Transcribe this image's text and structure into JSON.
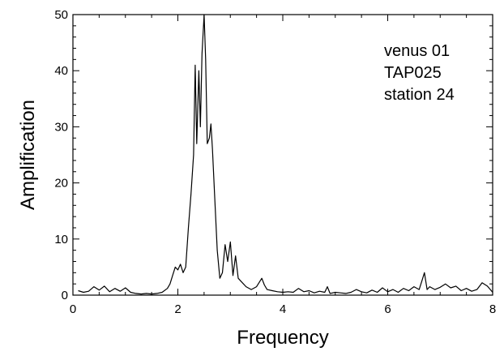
{
  "chart_data": {
    "type": "line",
    "title": "",
    "xlabel": "Frequency",
    "ylabel": "Amplification",
    "xlim": [
      0,
      8
    ],
    "ylim": [
      0,
      50
    ],
    "x_ticks": [
      0,
      2,
      4,
      6,
      8
    ],
    "y_ticks": [
      0,
      10,
      20,
      30,
      40,
      50
    ],
    "x_minor_step": 0.5,
    "y_minor_step": 2,
    "grid": false,
    "legend": "none",
    "line_color": "#000000",
    "annotation": [
      "venus 01",
      "TAP025",
      "station 24"
    ],
    "annotation_position": "top-right",
    "series": [
      {
        "x": [
          0.1,
          0.2,
          0.3,
          0.4,
          0.5,
          0.6,
          0.7,
          0.8,
          0.9,
          1.0,
          1.1,
          1.2,
          1.3,
          1.4,
          1.5,
          1.6,
          1.7,
          1.8,
          1.85,
          1.9,
          1.95,
          2.0,
          2.05,
          2.1,
          2.15,
          2.2,
          2.25,
          2.3,
          2.33,
          2.36,
          2.4,
          2.43,
          2.46,
          2.5,
          2.53,
          2.56,
          2.6,
          2.63,
          2.66,
          2.7,
          2.75,
          2.8,
          2.85,
          2.9,
          2.95,
          3.0,
          3.05,
          3.1,
          3.15,
          3.2,
          3.3,
          3.4,
          3.5,
          3.6,
          3.65,
          3.7,
          3.8,
          3.9,
          4.0,
          4.1,
          4.2,
          4.3,
          4.4,
          4.5,
          4.6,
          4.7,
          4.8,
          4.85,
          4.9,
          5.0,
          5.1,
          5.2,
          5.3,
          5.4,
          5.5,
          5.6,
          5.7,
          5.8,
          5.9,
          6.0,
          6.1,
          6.2,
          6.3,
          6.4,
          6.5,
          6.6,
          6.65,
          6.7,
          6.75,
          6.8,
          6.9,
          7.0,
          7.1,
          7.2,
          7.3,
          7.4,
          7.5,
          7.6,
          7.7,
          7.8,
          7.9,
          8.0
        ],
        "y": [
          0.8,
          0.5,
          0.7,
          1.5,
          0.9,
          1.6,
          0.6,
          1.2,
          0.7,
          1.3,
          0.5,
          0.3,
          0.2,
          0.3,
          0.2,
          0.3,
          0.5,
          1.2,
          2.0,
          3.5,
          5.0,
          4.5,
          5.5,
          4.0,
          5.0,
          12.0,
          18.0,
          25.0,
          41.0,
          27.0,
          40.0,
          30.0,
          43.0,
          50.0,
          42.0,
          27.0,
          28.0,
          30.5,
          26.0,
          18.0,
          8.0,
          3.0,
          4.0,
          9.0,
          6.0,
          9.5,
          3.5,
          7.0,
          3.0,
          2.5,
          1.5,
          1.0,
          1.5,
          3.0,
          1.8,
          1.0,
          0.8,
          0.6,
          0.5,
          0.6,
          0.5,
          1.2,
          0.6,
          0.8,
          0.4,
          0.7,
          0.5,
          1.5,
          0.3,
          0.5,
          0.4,
          0.3,
          0.5,
          1.0,
          0.6,
          0.4,
          0.9,
          0.5,
          1.3,
          0.6,
          1.0,
          0.5,
          1.2,
          0.8,
          1.5,
          1.0,
          2.5,
          4.0,
          1.0,
          1.5,
          1.0,
          1.4,
          2.0,
          1.3,
          1.6,
          0.8,
          1.2,
          0.7,
          1.0,
          2.2,
          1.6,
          0.5
        ]
      }
    ]
  }
}
